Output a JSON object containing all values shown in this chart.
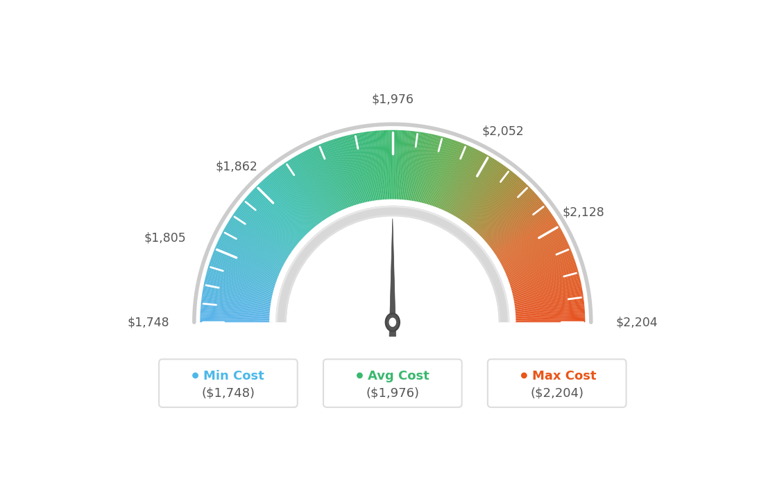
{
  "min_val": 1748,
  "avg_val": 1976,
  "max_val": 2204,
  "tick_labels": [
    "$1,748",
    "$1,805",
    "$1,862",
    "$1,976",
    "$2,052",
    "$2,128",
    "$2,204"
  ],
  "tick_values": [
    1748,
    1805,
    1862,
    1976,
    2052,
    2128,
    2204
  ],
  "legend_items": [
    {
      "label": "Min Cost",
      "value": "($1,748)",
      "color": "#4db8e8"
    },
    {
      "label": "Avg Cost",
      "value": "($1,976)",
      "color": "#3ab86e"
    },
    {
      "label": "Max Cost",
      "value": "($2,204)",
      "color": "#e8561a"
    }
  ],
  "needle_value": 1976,
  "bg_color": "#ffffff",
  "color_stops": [
    [
      0.0,
      [
        0.35,
        0.7,
        0.92
      ]
    ],
    [
      0.25,
      [
        0.25,
        0.75,
        0.72
      ]
    ],
    [
      0.42,
      [
        0.22,
        0.72,
        0.5
      ]
    ],
    [
      0.5,
      [
        0.22,
        0.72,
        0.42
      ]
    ],
    [
      0.6,
      [
        0.4,
        0.68,
        0.32
      ]
    ],
    [
      0.72,
      [
        0.62,
        0.55,
        0.22
      ]
    ],
    [
      0.82,
      [
        0.85,
        0.42,
        0.18
      ]
    ],
    [
      1.0,
      [
        0.9,
        0.32,
        0.12
      ]
    ]
  ]
}
